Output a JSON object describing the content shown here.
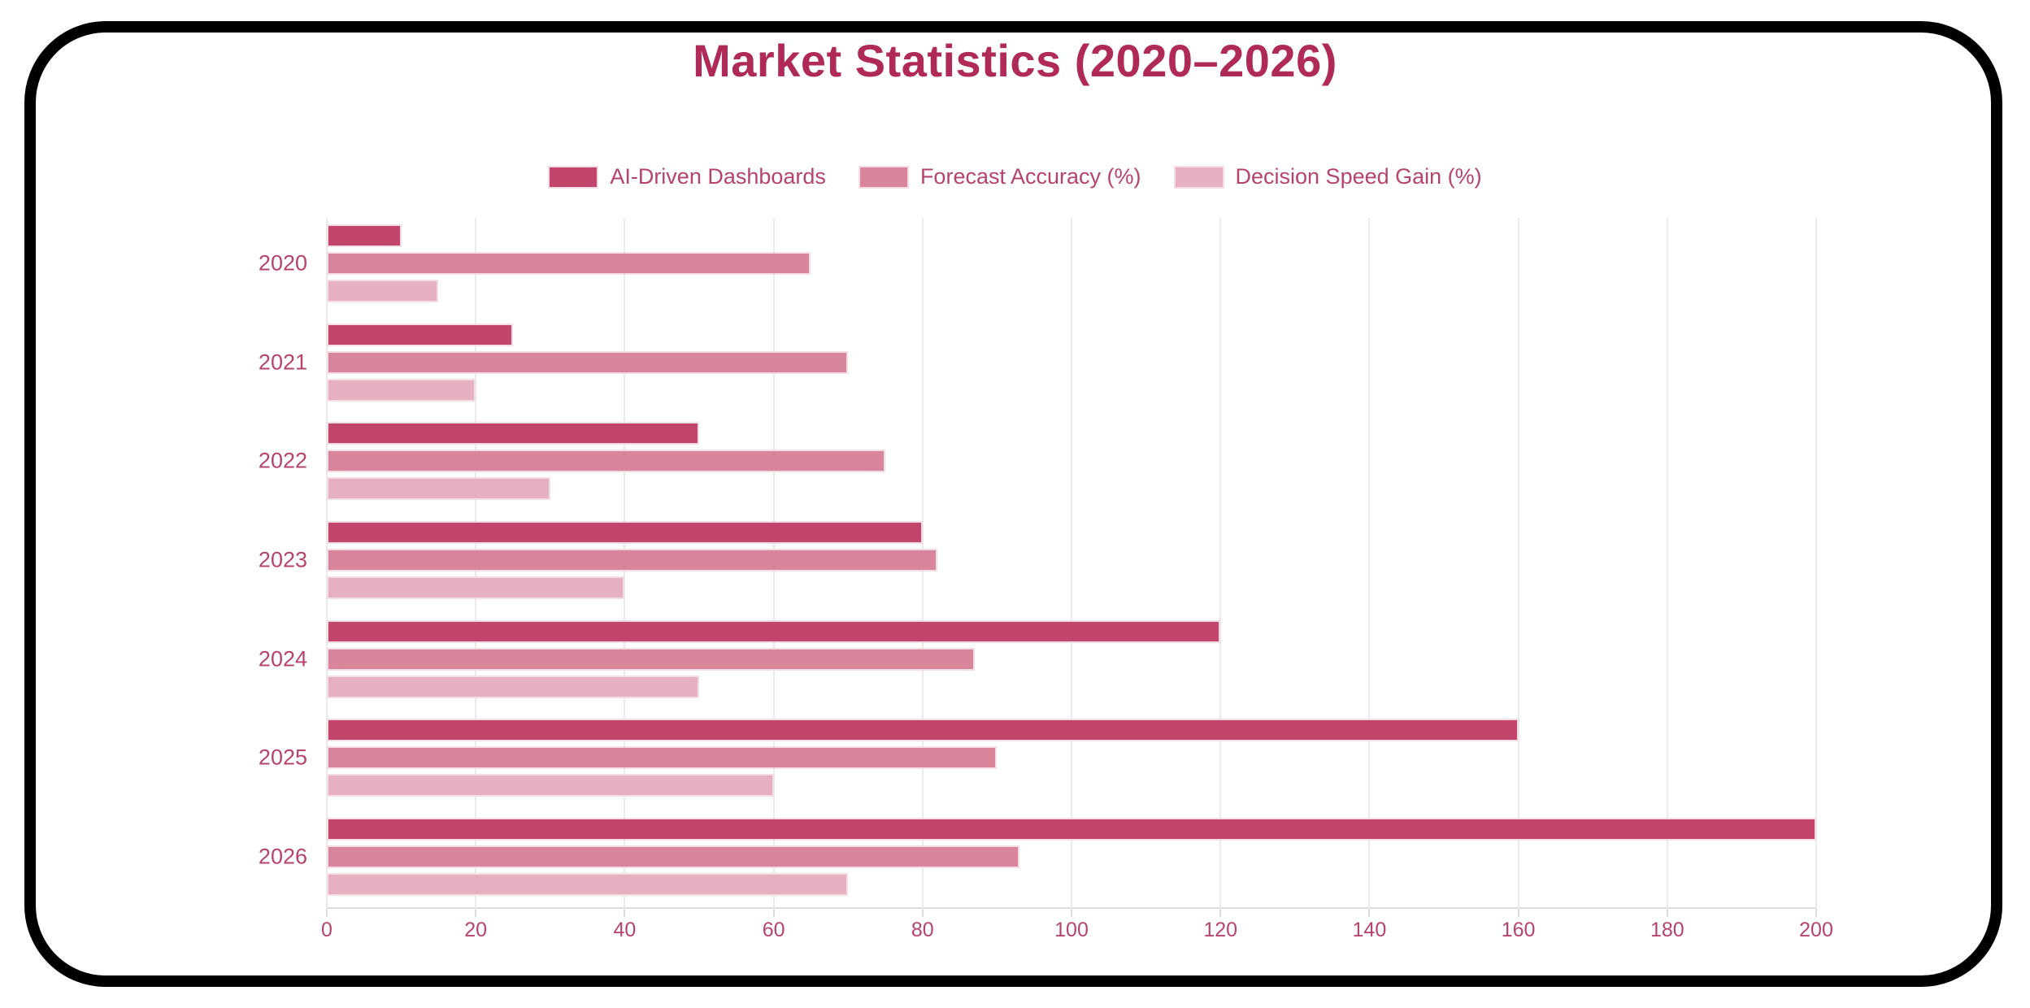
{
  "title": "Market Statistics (2020–2026)",
  "colors": {
    "background_color": "#ffffff",
    "frame_color": "#000000",
    "title_color": "#b02a57",
    "label_color": "#b5446c",
    "gridline_color": "#eaeaea",
    "axis_line_color": "#dcdcdc",
    "bar_border_color": "#f3dde3"
  },
  "chart_data": {
    "type": "bar",
    "orientation": "horizontal",
    "title": "Market Statistics (2020–2026)",
    "categories": [
      "2020",
      "2021",
      "2022",
      "2023",
      "2024",
      "2025",
      "2026"
    ],
    "series": [
      {
        "name": "AI-Driven Dashboards",
        "color": "#c2456b",
        "values": [
          10,
          25,
          50,
          80,
          120,
          160,
          200
        ]
      },
      {
        "name": "Forecast Accuracy (%)",
        "color": "#d8849a",
        "values": [
          65,
          70,
          75,
          82,
          87,
          90,
          93
        ]
      },
      {
        "name": "Decision Speed Gain (%)",
        "color": "#e5b1c1",
        "values": [
          15,
          20,
          30,
          40,
          50,
          60,
          70
        ]
      }
    ],
    "xlabel": "",
    "ylabel": "",
    "xlim": [
      0,
      200
    ],
    "xticks": [
      0,
      20,
      40,
      60,
      80,
      100,
      120,
      140,
      160,
      180,
      200
    ],
    "grid": true,
    "legend_position": "top"
  }
}
